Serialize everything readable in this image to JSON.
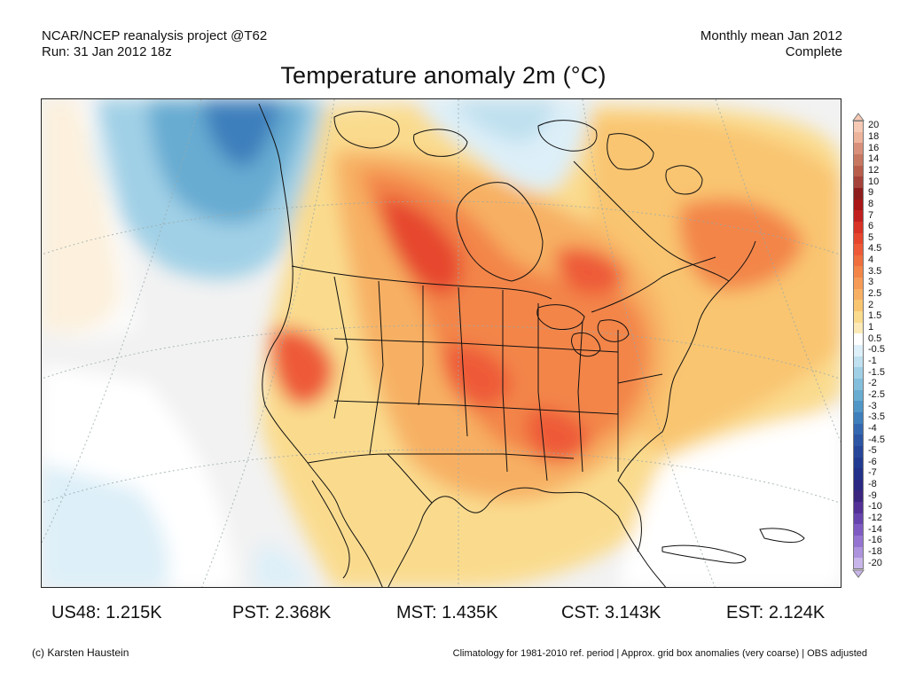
{
  "header": {
    "left_line1": "NCAR/NCEP reanalysis project @T62",
    "left_line2": "Run: 31 Jan 2012 18z",
    "right_line1": "Monthly mean Jan 2012",
    "right_line2": "Complete"
  },
  "title": "Temperature anomaly 2m (°C)",
  "colorbar": {
    "labels": [
      "20",
      "18",
      "16",
      "14",
      "12",
      "10",
      "9",
      "8",
      "7",
      "6",
      "5",
      "4.5",
      "4",
      "3.5",
      "3",
      "2.5",
      "2",
      "1.5",
      "1",
      "0.5",
      "-0.5",
      "-1",
      "-1.5",
      "-2",
      "-2.5",
      "-3",
      "-3.5",
      "-4",
      "-4.5",
      "-5",
      "-6",
      "-7",
      "-8",
      "-9",
      "-10",
      "-12",
      "-14",
      "-16",
      "-18",
      "-20"
    ],
    "colors": [
      "#f6c9b4",
      "#eeb39b",
      "#d9907a",
      "#c77860",
      "#b85e4b",
      "#a5433a",
      "#8e1e1e",
      "#a81616",
      "#c0201f",
      "#d83226",
      "#e6462d",
      "#ee5a37",
      "#f06f3e",
      "#f38549",
      "#f69b57",
      "#f7b063",
      "#f9c571",
      "#fadb8e",
      "#fbeab7",
      "#ffffff",
      "#ddeff8",
      "#bfe0ef",
      "#a0d0e6",
      "#83bfdc",
      "#68acd2",
      "#5096c7",
      "#3e7fbc",
      "#3368b0",
      "#2c55a3",
      "#26469a",
      "#223b92",
      "#22328a",
      "#2a2883",
      "#3b257f",
      "#523096",
      "#6744ad",
      "#7f5ac2",
      "#9574d1",
      "#ad92de",
      "#c8b6ea"
    ]
  },
  "stats": [
    {
      "label": "US48:",
      "value": "1.215K"
    },
    {
      "label": "PST:",
      "value": "2.368K"
    },
    {
      "label": "MST:",
      "value": "1.435K"
    },
    {
      "label": "CST:",
      "value": "3.143K"
    },
    {
      "label": "EST:",
      "value": "2.124K"
    }
  ],
  "footer": {
    "left": "(c) Karsten Haustein",
    "right": "Climatology for 1981-2010 ref. period | Approx. grid box anomalies (very coarse) | OBS adjusted"
  }
}
